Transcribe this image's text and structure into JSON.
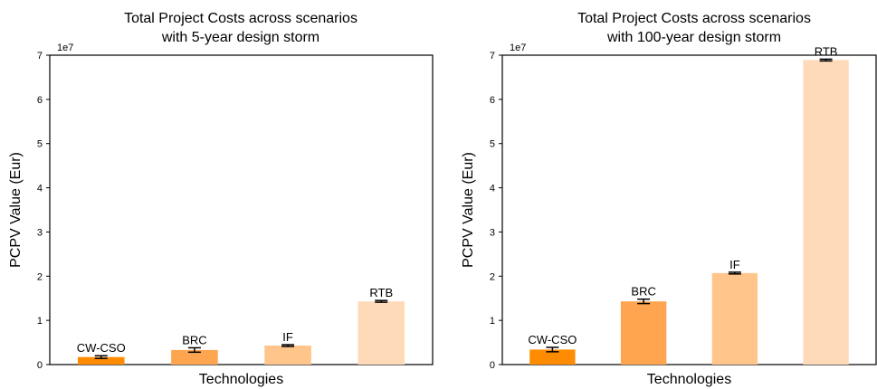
{
  "chart_data": [
    {
      "type": "bar",
      "title": "Total Project Costs across scenarios\nwith 5-year design storm",
      "xlabel": "Technologies",
      "ylabel": "PCPV Value (Eur)",
      "y_multiplier_label": "1e7",
      "ylim": [
        0,
        7
      ],
      "yticks": [
        "0",
        "1",
        "2",
        "3",
        "4",
        "5",
        "6",
        "7"
      ],
      "categories": [
        "CW-CSO",
        "BRC",
        "IF",
        "RTB"
      ],
      "values": [
        0.17,
        0.33,
        0.43,
        1.43
      ],
      "errors": [
        0.03,
        0.05,
        0.02,
        0.02
      ],
      "colors": [
        "#ff8c00",
        "#ffa54f",
        "#ffc58a",
        "#ffdab9"
      ],
      "grid": false,
      "error_bars": true
    },
    {
      "type": "bar",
      "title": "Total Project Costs across scenarios\nwith 100-year design storm",
      "xlabel": "Technologies",
      "ylabel": "PCPV Value (Eur)",
      "y_multiplier_label": "1e7",
      "ylim": [
        0,
        7
      ],
      "yticks": [
        "0",
        "1",
        "2",
        "3",
        "4",
        "5",
        "6",
        "7"
      ],
      "categories": [
        "CW-CSO",
        "BRC",
        "IF",
        "RTB"
      ],
      "values": [
        0.34,
        1.43,
        2.07,
        6.89
      ],
      "errors": [
        0.05,
        0.05,
        0.02,
        0.02
      ],
      "colors": [
        "#ff8c00",
        "#ffa54f",
        "#ffc58a",
        "#ffdab9"
      ],
      "grid": false,
      "error_bars": true
    }
  ]
}
